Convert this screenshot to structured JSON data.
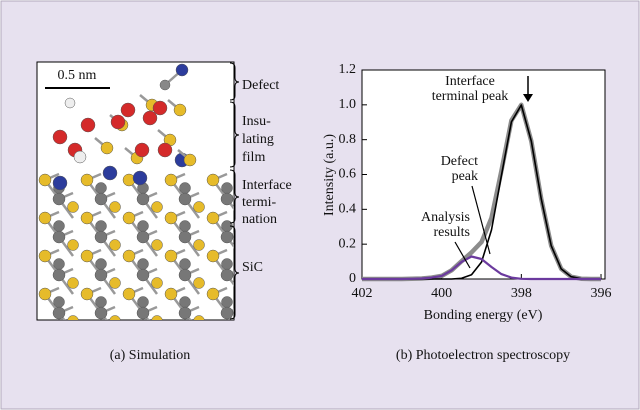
{
  "panel_a": {
    "scale_bar": "0.5 nm",
    "labels": [
      [
        "Defect"
      ],
      [
        "Insu-",
        "lating",
        "film"
      ],
      [
        "Interface",
        "termi-",
        "nation"
      ],
      [
        "SiC"
      ]
    ],
    "caption": "(a) Simulation"
  },
  "chart_data": {
    "type": "line",
    "caption": "(b) Photoelectron spectroscopy",
    "x_label": "Bonding energy (eV)",
    "y_label": "Intensity (a.u.)",
    "x": [
      402,
      401.75,
      401.5,
      401.25,
      401,
      400.75,
      400.5,
      400.25,
      400,
      399.75,
      399.5,
      399.25,
      399,
      398.75,
      398.5,
      398.25,
      398,
      397.75,
      397.5,
      397.25,
      397,
      396.75,
      396.5,
      396.25,
      396
    ],
    "series": [
      {
        "color": "#8c8c8c",
        "values": [
          0,
          0,
          0,
          0,
          0,
          0.001,
          0.003,
          0.008,
          0.018,
          0.05,
          0.102,
          0.153,
          0.212,
          0.351,
          0.621,
          0.91,
          1.0,
          0.792,
          0.458,
          0.191,
          0.058,
          0.013,
          0.002,
          0,
          0
        ]
      },
      {
        "color": "#000000",
        "values": [
          0,
          0,
          0,
          0,
          0,
          0,
          0,
          0,
          0,
          0,
          0.004,
          0.024,
          0.097,
          0.282,
          0.593,
          0.902,
          0.999,
          0.792,
          0.458,
          0.191,
          0.058,
          0.013,
          0.002,
          0,
          0
        ]
      },
      {
        "color": "#6b3a9e",
        "values": [
          0,
          0,
          0,
          0,
          0,
          0.001,
          0.003,
          0.008,
          0.018,
          0.05,
          0.098,
          0.129,
          0.115,
          0.069,
          0.028,
          0.008,
          0.001,
          0,
          0,
          0,
          0,
          0,
          0,
          0,
          0
        ]
      }
    ],
    "xlim": [
      402,
      395.9
    ],
    "xticks": [
      402,
      400,
      398,
      396
    ],
    "ylim": [
      0,
      1.2
    ],
    "yticks": [
      0,
      0.2,
      0.4,
      0.6,
      0.8,
      {
        "value": 1,
        "label": "1.0"
      },
      1.2
    ],
    "annotations": [
      {
        "lines": [
          "Interface",
          "terminal peak"
        ]
      },
      {
        "lines": [
          "Defect",
          "peak"
        ]
      },
      {
        "lines": [
          "Analysis",
          "results"
        ]
      }
    ]
  }
}
